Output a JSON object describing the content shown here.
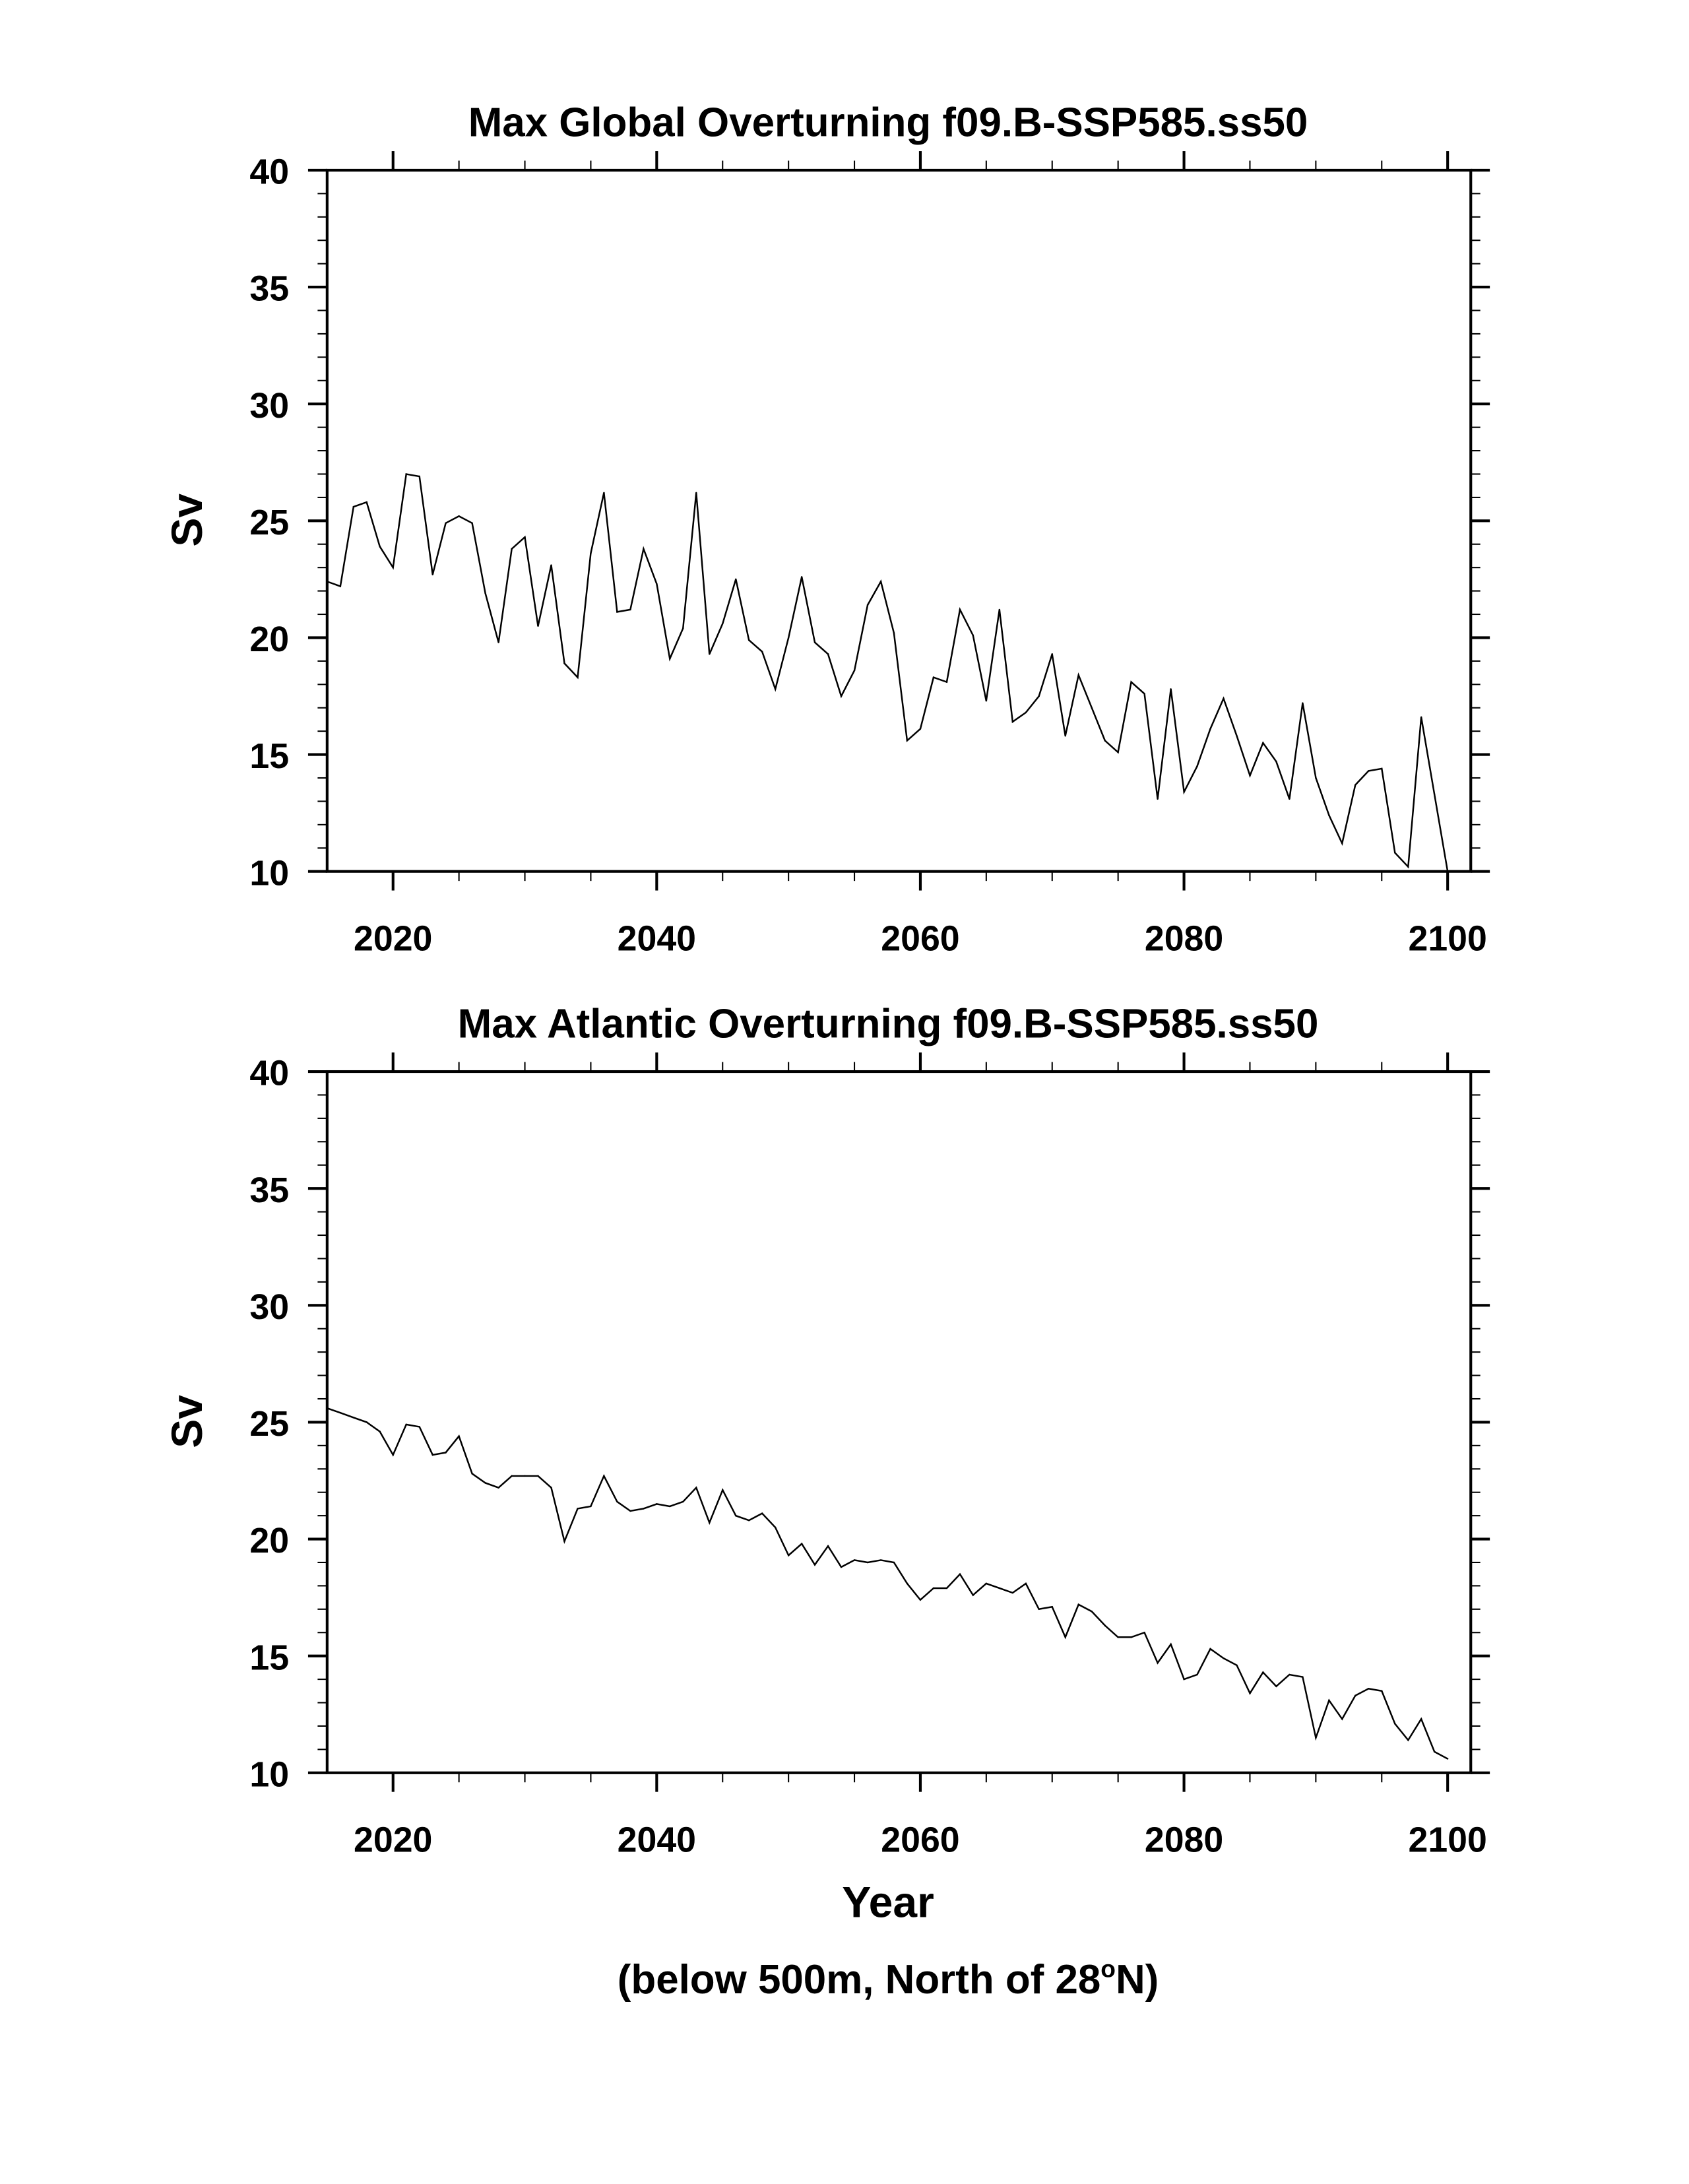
{
  "chart_data": [
    {
      "type": "line",
      "title": "Max Global Overturning f09.B-SSP585.ss50",
      "xlabel": "",
      "ylabel": "Sv",
      "xlim": [
        2015,
        2101
      ],
      "ylim": [
        10,
        40
      ],
      "xticks": [
        2020,
        2040,
        2060,
        2080,
        2100
      ],
      "yticks": [
        10,
        15,
        20,
        25,
        30,
        35,
        40
      ],
      "grid": false,
      "x_start": 2015,
      "series": [
        {
          "name": "global",
          "color": "#000000",
          "values": [
            22.4,
            22.2,
            25.6,
            25.8,
            23.9,
            23.0,
            27.0,
            26.9,
            22.7,
            24.9,
            25.2,
            24.9,
            21.9,
            19.8,
            23.8,
            24.3,
            20.5,
            23.1,
            18.9,
            18.3,
            23.6,
            26.2,
            21.1,
            21.2,
            23.8,
            22.3,
            19.1,
            20.4,
            26.2,
            19.3,
            20.6,
            22.5,
            19.9,
            19.4,
            17.8,
            20.0,
            22.6,
            19.8,
            19.3,
            17.5,
            18.6,
            21.4,
            22.4,
            20.2,
            15.6,
            16.1,
            18.3,
            18.1,
            21.2,
            20.1,
            17.3,
            21.2,
            16.4,
            16.8,
            17.5,
            19.3,
            15.8,
            18.4,
            17.0,
            15.6,
            15.1,
            18.1,
            17.6,
            13.1,
            17.8,
            13.4,
            14.5,
            16.1,
            17.4,
            15.8,
            14.1,
            15.5,
            14.7,
            13.1,
            17.2,
            14.0,
            12.4,
            11.2,
            13.7,
            14.3,
            14.4,
            10.8,
            10.2,
            16.6,
            13.3,
            10.0
          ]
        }
      ]
    },
    {
      "type": "line",
      "title": "Max Atlantic Overturning f09.B-SSP585.ss50",
      "xlabel": "Year",
      "subtitle": "(below 500m, North of 28",
      "subtitle_sup": "o",
      "subtitle_end": "N)",
      "ylabel": "Sv",
      "xlim": [
        2015,
        2101
      ],
      "ylim": [
        10,
        40
      ],
      "xticks": [
        2020,
        2040,
        2060,
        2080,
        2100
      ],
      "yticks": [
        10,
        15,
        20,
        25,
        30,
        35,
        40
      ],
      "grid": false,
      "x_start": 2015,
      "series": [
        {
          "name": "atlantic",
          "color": "#000000",
          "values": [
            25.6,
            25.4,
            25.2,
            25.0,
            24.6,
            23.6,
            24.9,
            24.8,
            23.6,
            23.7,
            24.4,
            22.8,
            22.4,
            22.2,
            22.7,
            22.7,
            22.7,
            22.2,
            19.9,
            21.3,
            21.4,
            22.7,
            21.6,
            21.2,
            21.3,
            21.5,
            21.4,
            21.6,
            22.2,
            20.7,
            22.1,
            21.0,
            20.8,
            21.1,
            20.5,
            19.3,
            19.8,
            18.9,
            19.7,
            18.8,
            19.1,
            19.0,
            19.1,
            19.0,
            18.1,
            17.4,
            17.9,
            17.9,
            18.5,
            17.6,
            18.1,
            17.9,
            17.7,
            18.1,
            17.0,
            17.1,
            15.8,
            17.2,
            16.9,
            16.3,
            15.8,
            15.8,
            16.0,
            14.7,
            15.5,
            14.0,
            14.2,
            15.3,
            14.9,
            14.6,
            13.4,
            14.3,
            13.7,
            14.2,
            14.1,
            11.5,
            13.1,
            12.3,
            13.3,
            13.6,
            13.5,
            12.1,
            11.4,
            12.3,
            10.9,
            10.6
          ]
        }
      ]
    }
  ]
}
